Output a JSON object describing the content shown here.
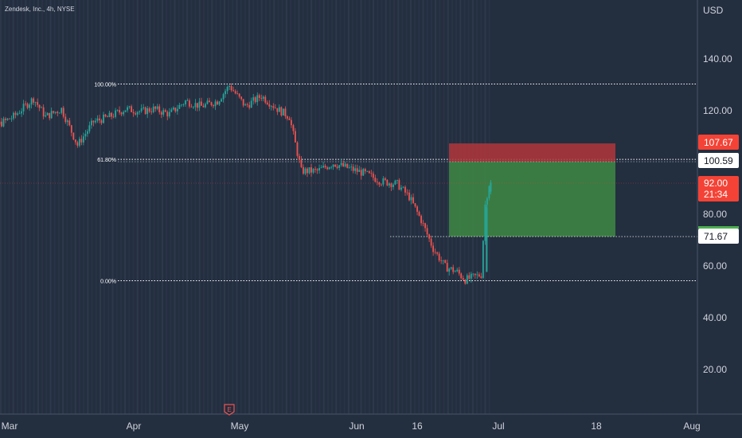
{
  "header": {
    "symbol_text": "Zendesk, Inc., 4h, NYSE"
  },
  "price_axis": {
    "currency": "USD",
    "ticks": [
      "140.00",
      "120.00",
      "80.00",
      "60.00",
      "40.00",
      "20.00"
    ]
  },
  "time_axis": {
    "ticks": [
      "Mar",
      "Apr",
      "May",
      "Jun",
      "16",
      "Jul",
      "18",
      "Aug"
    ]
  },
  "fib_levels": [
    {
      "label": "100.00%",
      "price": 130.6
    },
    {
      "label": "61.80%",
      "price": 101.5
    },
    {
      "label": "0.00%",
      "price": 54.6
    }
  ],
  "position": {
    "stop_label": "107.67",
    "stop": 107.67,
    "entry_label": "100.59",
    "entry": 100.59,
    "target_label": "71.67",
    "target": 71.67
  },
  "last_price": {
    "label": "92.00",
    "countdown": "21:34",
    "value": 92.0
  },
  "earnings_marker": {
    "label": "E"
  },
  "colors": {
    "background": "#232e3f",
    "up_candle": "#26a69a",
    "down_candle": "#ef5350",
    "stop_zone": "#b0363b",
    "target_zone": "#3c8043",
    "last_price_badge": "#f44336",
    "axis_text": "#d1d4dc",
    "fib_line": "#ffffff"
  },
  "chart_data": {
    "type": "candlestick",
    "title": "Zendesk, Inc., 4h, NYSE",
    "ylabel": "USD",
    "ylim": [
      0,
      150
    ],
    "close_series": [
      {
        "date": "2022-02-20",
        "close": 115
      },
      {
        "date": "2022-02-25",
        "close": 114
      },
      {
        "date": "2022-03-02",
        "close": 118
      },
      {
        "date": "2022-03-07",
        "close": 125
      },
      {
        "date": "2022-03-10",
        "close": 118
      },
      {
        "date": "2022-03-14",
        "close": 121
      },
      {
        "date": "2022-03-18",
        "close": 107
      },
      {
        "date": "2022-03-22",
        "close": 116
      },
      {
        "date": "2022-03-26",
        "close": 118
      },
      {
        "date": "2022-03-30",
        "close": 121
      },
      {
        "date": "2022-04-03",
        "close": 120
      },
      {
        "date": "2022-04-06",
        "close": 121
      },
      {
        "date": "2022-04-10",
        "close": 119
      },
      {
        "date": "2022-04-14",
        "close": 124
      },
      {
        "date": "2022-04-18",
        "close": 122
      },
      {
        "date": "2022-04-22",
        "close": 124
      },
      {
        "date": "2022-04-25",
        "close": 130
      },
      {
        "date": "2022-04-29",
        "close": 122
      },
      {
        "date": "2022-05-03",
        "close": 126
      },
      {
        "date": "2022-05-07",
        "close": 121
      },
      {
        "date": "2022-05-10",
        "close": 118
      },
      {
        "date": "2022-05-13",
        "close": 97
      },
      {
        "date": "2022-05-17",
        "close": 97
      },
      {
        "date": "2022-05-21",
        "close": 100
      },
      {
        "date": "2022-05-25",
        "close": 98
      },
      {
        "date": "2022-05-29",
        "close": 96
      },
      {
        "date": "2022-06-02",
        "close": 93
      },
      {
        "date": "2022-06-06",
        "close": 92
      },
      {
        "date": "2022-06-09",
        "close": 87
      },
      {
        "date": "2022-06-12",
        "close": 78
      },
      {
        "date": "2022-06-15",
        "close": 67
      },
      {
        "date": "2022-06-18",
        "close": 60
      },
      {
        "date": "2022-06-21",
        "close": 58
      },
      {
        "date": "2022-06-23",
        "close": 55
      },
      {
        "date": "2022-06-25",
        "close": 56
      },
      {
        "date": "2022-06-27",
        "close": 57
      },
      {
        "date": "2022-06-28",
        "close": 84
      },
      {
        "date": "2022-06-29",
        "close": 92
      }
    ]
  }
}
